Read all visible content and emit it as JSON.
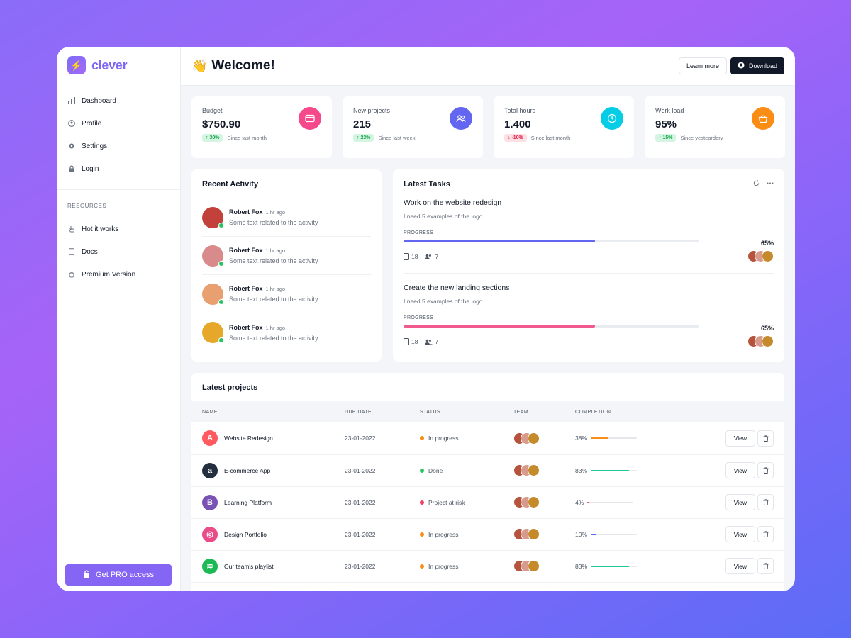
{
  "brand": {
    "name": "clever",
    "logo_glyph": "⚡"
  },
  "sidebar": {
    "items": [
      {
        "label": "Dashboard",
        "icon": "bar-chart-icon"
      },
      {
        "label": "Profile",
        "icon": "user-circle-icon"
      },
      {
        "label": "Settings",
        "icon": "gear-icon"
      },
      {
        "label": "Login",
        "icon": "lock-icon"
      }
    ],
    "resources_label": "RESOURCES",
    "resources": [
      {
        "label": "Hot it works",
        "icon": "hand-pointer-icon"
      },
      {
        "label": "Docs",
        "icon": "document-icon"
      },
      {
        "label": "Premium Version",
        "icon": "hand-icon"
      }
    ],
    "pro_button": "Get PRO access"
  },
  "header": {
    "title": "Welcome!",
    "learn_more": "Learn more",
    "download": "Download"
  },
  "stats": [
    {
      "title": "Budget",
      "value": "$750.90",
      "change": "↑ 30%",
      "direction": "up",
      "note": "Since last month",
      "icon": "credit-card-icon",
      "color": "#f6498c"
    },
    {
      "title": "New projects",
      "value": "215",
      "change": "↑ 23%",
      "direction": "up",
      "note": "Since last week",
      "icon": "users-icon",
      "color": "#6366f1"
    },
    {
      "title": "Total hours",
      "value": "1.400",
      "change": "↓ -10%",
      "direction": "down",
      "note": "Since last month",
      "icon": "clock-icon",
      "color": "#06cde6"
    },
    {
      "title": "Work load",
      "value": "95%",
      "change": "↑ 15%",
      "direction": "up",
      "note": "Since yesteardary",
      "icon": "basket-icon",
      "color": "#fb8c14"
    }
  ],
  "recent_activity": {
    "title": "Recent Activity",
    "items": [
      {
        "name": "Robert Fox",
        "time": "1 hr ago",
        "text": "Some text related to the activity",
        "avatar_color": "#c2413b"
      },
      {
        "name": "Robert Fox",
        "time": "1 hr ago",
        "text": "Some text related to the activity",
        "avatar_color": "#d98a8a"
      },
      {
        "name": "Robert Fox",
        "time": "1 hr ago",
        "text": "Some text related to the activity",
        "avatar_color": "#e8a070"
      },
      {
        "name": "Robert Fox",
        "time": "1 hr ago",
        "text": "Some text related to the activity",
        "avatar_color": "#e6a72a"
      }
    ]
  },
  "latest_tasks": {
    "title": "Latest Tasks",
    "tasks": [
      {
        "name": "Work on the website redesign",
        "desc": "I need 5 examples of the logo",
        "progress_label": "PROGRESS",
        "progress": 0.65,
        "progress_text": "65%",
        "color": "#6366f1",
        "files": "18",
        "members": "7"
      },
      {
        "name": "Create the new landing sections",
        "desc": "I need 5 examples of the logo",
        "progress_label": "PROGRESS",
        "progress": 0.65,
        "progress_text": "65%",
        "color": "#f05a8f",
        "files": "18",
        "members": "7"
      }
    ]
  },
  "latest_projects": {
    "title": "Latest projects",
    "columns": [
      "NAME",
      "DUE DATE",
      "STATUS",
      "TEAM",
      "COMPLETION"
    ],
    "view_label": "View",
    "rows": [
      {
        "name": "Website Redesign",
        "logo": "airbnb-logo-icon",
        "logo_glyph": "A",
        "logo_color": "#ff5a5f",
        "due": "23-01-2022",
        "status": "In progress",
        "status_color": "#fb8c14",
        "completion_text": "38%",
        "completion": 0.38,
        "bar_color": "#fb8c14"
      },
      {
        "name": "E-commerce App",
        "logo": "amazon-logo-icon",
        "logo_glyph": "a",
        "logo_color": "#232f3e",
        "due": "23-01-2022",
        "status": "Done",
        "status_color": "#22c55e",
        "completion_text": "83%",
        "completion": 0.83,
        "bar_color": "#20c997"
      },
      {
        "name": "Learning Platform",
        "logo": "bootstrap-logo-icon",
        "logo_glyph": "B",
        "logo_color": "#7952b3",
        "due": "23-01-2022",
        "status": "Project at risk",
        "status_color": "#f43f5e",
        "completion_text": "4%",
        "completion": 0.04,
        "bar_color": "#f43f5e"
      },
      {
        "name": "Design Portfolio",
        "logo": "dribbble-logo-icon",
        "logo_glyph": "◎",
        "logo_color": "#ea4c89",
        "due": "23-01-2022",
        "status": "In progress",
        "status_color": "#fb8c14",
        "completion_text": "10%",
        "completion": 0.1,
        "bar_color": "#6366f1"
      },
      {
        "name": "Our team's playlist",
        "logo": "spotify-logo-icon",
        "logo_glyph": "≋",
        "logo_color": "#1db954",
        "due": "23-01-2022",
        "status": "In progress",
        "status_color": "#fb8c14",
        "completion_text": "83%",
        "completion": 0.83,
        "bar_color": "#20c997"
      }
    ]
  }
}
